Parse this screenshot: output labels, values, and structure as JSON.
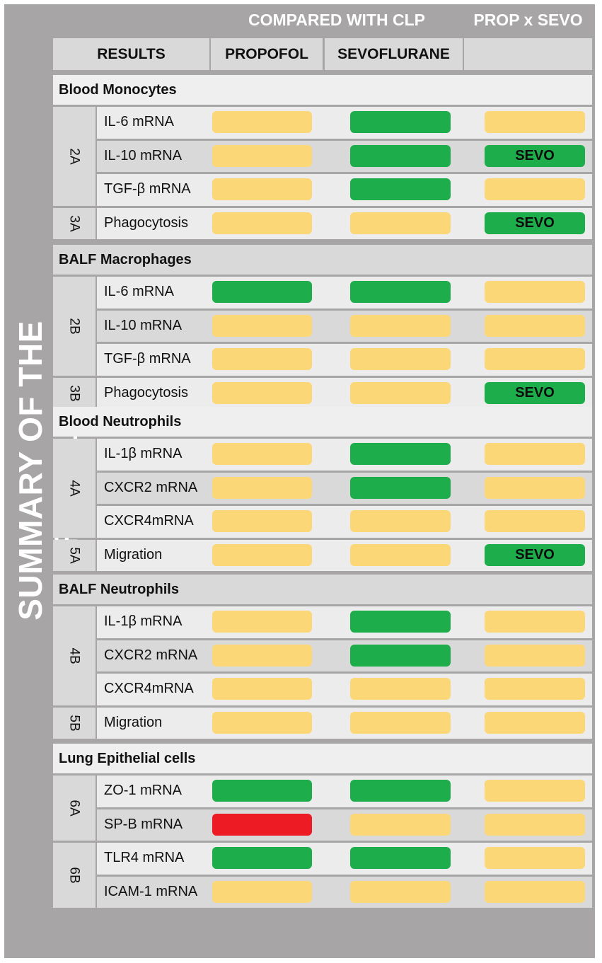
{
  "title": "SUMMARY OF THE RESULTS",
  "header": {
    "compared": "COMPARED WITH CLP",
    "interaction": "PROP x SEVO",
    "results": "RESULTS",
    "propofol": "PROPOFOL",
    "sevoflurane": "SEVOFLURANE"
  },
  "legend_colors": {
    "no_effect": "#fcd778",
    "effect": "#1ead4b",
    "decrease": "#ed1c24"
  },
  "sections": [
    {
      "name": "Blood Monocytes",
      "groups": [
        {
          "fig": "2A",
          "rows": [
            {
              "label": "IL-6 mRNA",
              "prop": "no_effect",
              "sevo": "effect",
              "inter": "no_effect",
              "inter_label": ""
            },
            {
              "label": "IL-10 mRNA",
              "prop": "no_effect",
              "sevo": "effect",
              "inter": "effect",
              "inter_label": "SEVO"
            },
            {
              "label": "TGF-β mRNA",
              "prop": "no_effect",
              "sevo": "effect",
              "inter": "no_effect",
              "inter_label": ""
            }
          ]
        },
        {
          "fig": "3A",
          "rows": [
            {
              "label": "Phagocytosis",
              "prop": "no_effect",
              "sevo": "no_effect",
              "inter": "effect",
              "inter_label": "SEVO"
            }
          ]
        }
      ]
    },
    {
      "name": "BALF Macrophages",
      "groups": [
        {
          "fig": "2B",
          "rows": [
            {
              "label": "IL-6 mRNA",
              "prop": "effect",
              "sevo": "effect",
              "inter": "no_effect",
              "inter_label": ""
            },
            {
              "label": "IL-10 mRNA",
              "prop": "no_effect",
              "sevo": "no_effect",
              "inter": "no_effect",
              "inter_label": ""
            },
            {
              "label": "TGF-β mRNA",
              "prop": "no_effect",
              "sevo": "no_effect",
              "inter": "no_effect",
              "inter_label": ""
            }
          ]
        },
        {
          "fig": "3B",
          "rows": [
            {
              "label": "Phagocytosis",
              "prop": "no_effect",
              "sevo": "no_effect",
              "inter": "effect",
              "inter_label": "SEVO"
            }
          ]
        }
      ]
    },
    {
      "name": "Blood Neutrophils",
      "groups": [
        {
          "fig": "4A",
          "rows": [
            {
              "label": "IL-1β  mRNA",
              "prop": "no_effect",
              "sevo": "effect",
              "inter": "no_effect",
              "inter_label": ""
            },
            {
              "label": "CXCR2 mRNA",
              "prop": "no_effect",
              "sevo": "effect",
              "inter": "no_effect",
              "inter_label": ""
            },
            {
              "label": "CXCR4mRNA",
              "prop": "no_effect",
              "sevo": "no_effect",
              "inter": "no_effect",
              "inter_label": ""
            }
          ]
        },
        {
          "fig": "5A",
          "rows": [
            {
              "label": "Migration",
              "prop": "no_effect",
              "sevo": "no_effect",
              "inter": "effect",
              "inter_label": "SEVO"
            }
          ]
        }
      ]
    },
    {
      "name": "BALF Neutrophils",
      "groups": [
        {
          "fig": "4B",
          "rows": [
            {
              "label": "IL-1β  mRNA",
              "prop": "no_effect",
              "sevo": "effect",
              "inter": "no_effect",
              "inter_label": ""
            },
            {
              "label": "CXCR2 mRNA",
              "prop": "no_effect",
              "sevo": "effect",
              "inter": "no_effect",
              "inter_label": ""
            },
            {
              "label": "CXCR4mRNA",
              "prop": "no_effect",
              "sevo": "no_effect",
              "inter": "no_effect",
              "inter_label": ""
            }
          ]
        },
        {
          "fig": "5B",
          "rows": [
            {
              "label": "Migration",
              "prop": "no_effect",
              "sevo": "no_effect",
              "inter": "no_effect",
              "inter_label": ""
            }
          ]
        }
      ]
    },
    {
      "name": "Lung Epithelial cells",
      "groups": [
        {
          "fig": "6A",
          "rows": [
            {
              "label": "ZO-1 mRNA",
              "prop": "effect",
              "sevo": "effect",
              "inter": "no_effect",
              "inter_label": ""
            },
            {
              "label": "SP-B mRNA",
              "prop": "decrease",
              "sevo": "no_effect",
              "inter": "no_effect",
              "inter_label": ""
            }
          ]
        },
        {
          "fig": "6B",
          "rows": [
            {
              "label": "TLR4 mRNA",
              "prop": "effect",
              "sevo": "effect",
              "inter": "no_effect",
              "inter_label": ""
            },
            {
              "label": "ICAM-1 mRNA",
              "prop": "no_effect",
              "sevo": "no_effect",
              "inter": "no_effect",
              "inter_label": ""
            }
          ]
        }
      ]
    }
  ]
}
